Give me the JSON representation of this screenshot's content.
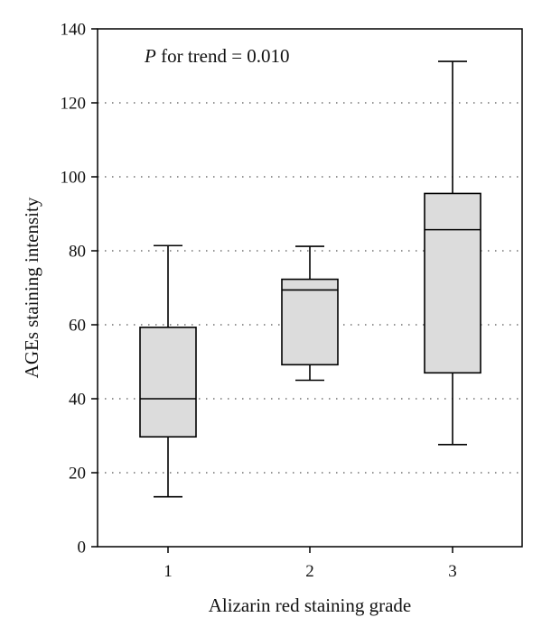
{
  "chart_data": {
    "type": "box",
    "categories": [
      "1",
      "2",
      "3"
    ],
    "boxes": [
      {
        "category": "1",
        "whisker_low": 13.5,
        "q1": 29.7,
        "median": 40.0,
        "q3": 59.3,
        "whisker_high": 81.4
      },
      {
        "category": "2",
        "whisker_low": 45.0,
        "q1": 49.2,
        "median": 69.4,
        "q3": 72.3,
        "whisker_high": 81.2
      },
      {
        "category": "3",
        "whisker_low": 27.6,
        "q1": 47.0,
        "median": 85.7,
        "q3": 95.5,
        "whisker_high": 131.2
      }
    ],
    "xlabel": "Alizarin red staining grade",
    "ylabel": "AGEs staining intensity",
    "ylim": [
      0,
      140
    ],
    "yticks": [
      0,
      20,
      40,
      60,
      80,
      100,
      120,
      140
    ],
    "grid": "horizontal-dotted",
    "annotation": {
      "italic": "P",
      "text": " for trend = 0.010"
    },
    "colors": {
      "box_fill": "#dcdcdc",
      "stroke": "#000000",
      "grid": "#555555"
    }
  }
}
